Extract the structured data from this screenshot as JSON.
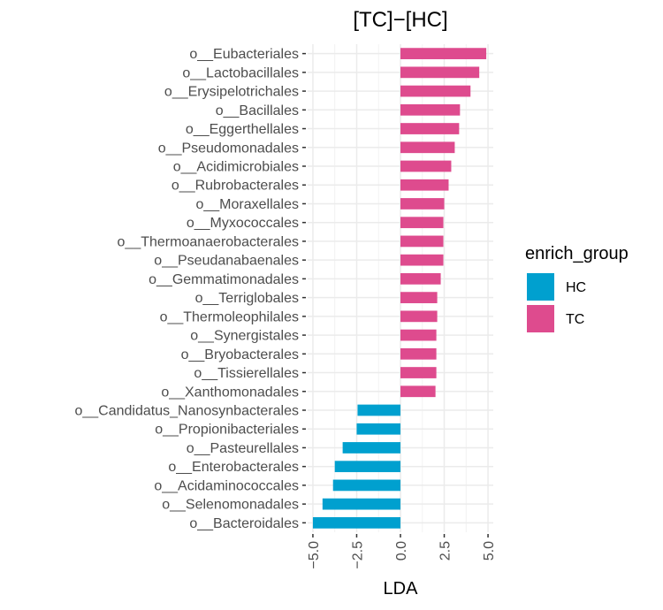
{
  "chart_data": {
    "type": "bar",
    "orientation": "horizontal",
    "title": "[TC]-[HC]",
    "xlabel": "LDA",
    "ylabel": "",
    "xlim": [
      -5.3,
      5.3
    ],
    "x_ticks": [
      -5.0,
      -2.5,
      0.0,
      2.5,
      5.0
    ],
    "x_tick_labels": [
      "-5.0",
      "-2.5",
      "0.0",
      "2.5",
      "5.0"
    ],
    "grid": true,
    "legend": {
      "title": "enrich_group",
      "position": "right",
      "entries": [
        {
          "name": "HC",
          "color": "#00a0cf"
        },
        {
          "name": "TC",
          "color": "#de4b8e"
        }
      ]
    },
    "categories": [
      "o__Eubacteriales",
      "o__Lactobacillales",
      "o__Erysipelotrichales",
      "o__Bacillales",
      "o__Eggerthellales",
      "o__Pseudomonadales",
      "o__Acidimicrobiales",
      "o__Rubrobacterales",
      "o__Moraxellales",
      "o__Myxococcales",
      "o__Thermoanaerobacterales",
      "o__Pseudanabaenales",
      "o__Gemmatimonadales",
      "o__Terriglobales",
      "o__Thermoleophilales",
      "o__Synergistales",
      "o__Bryobacterales",
      "o__Tissierellales",
      "o__Xanthomonadales",
      "o__Candidatus_Nanosynbacterales",
      "o__Propionibacteriales",
      "o__Pasteurellales",
      "o__Enterobacterales",
      "o__Acidaminococcales",
      "o__Selenomonadales",
      "o__Bacteroidales"
    ],
    "values": [
      4.9,
      4.5,
      4.0,
      3.4,
      3.35,
      3.1,
      2.9,
      2.75,
      2.5,
      2.45,
      2.45,
      2.45,
      2.3,
      2.1,
      2.1,
      2.05,
      2.05,
      2.05,
      2.0,
      -2.45,
      -2.5,
      -3.3,
      -3.75,
      -3.85,
      -4.45,
      -5.0
    ],
    "groups": [
      "TC",
      "TC",
      "TC",
      "TC",
      "TC",
      "TC",
      "TC",
      "TC",
      "TC",
      "TC",
      "TC",
      "TC",
      "TC",
      "TC",
      "TC",
      "TC",
      "TC",
      "TC",
      "TC",
      "HC",
      "HC",
      "HC",
      "HC",
      "HC",
      "HC",
      "HC"
    ]
  }
}
